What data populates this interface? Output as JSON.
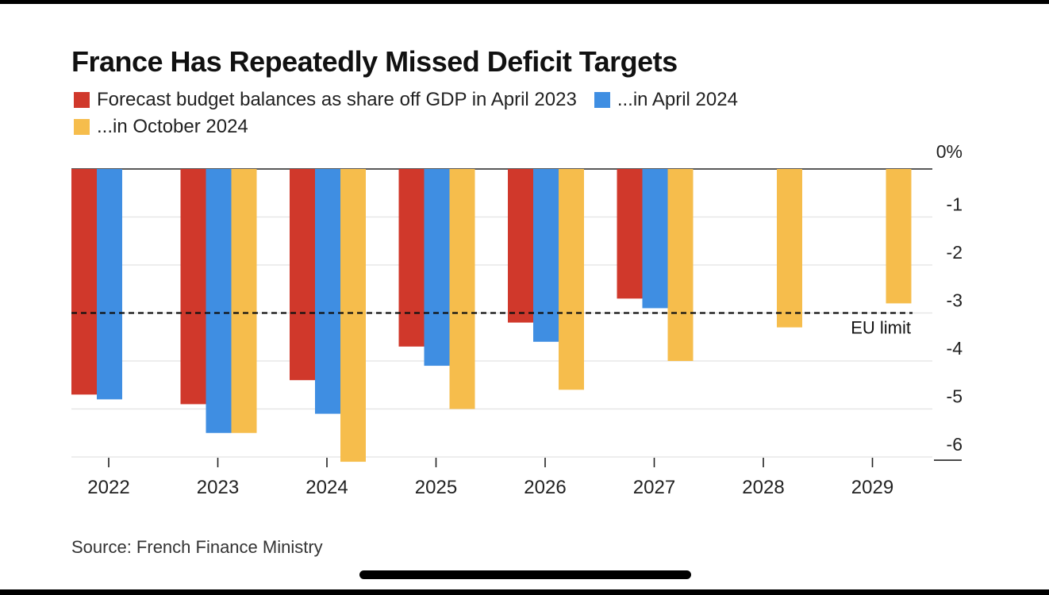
{
  "chart_data": {
    "type": "bar",
    "title": "France Has Repeatedly Missed Deficit Targets",
    "categories": [
      "2022",
      "2023",
      "2024",
      "2025",
      "2026",
      "2027",
      "2028",
      "2029"
    ],
    "series": [
      {
        "name": "Forecast budget balances as share off GDP in April 2023",
        "color": "#d0382b",
        "values": [
          -4.7,
          -4.9,
          -4.4,
          -3.7,
          -3.2,
          -2.7,
          null,
          null
        ]
      },
      {
        "name": "...in April 2024",
        "color": "#3f8ee2",
        "values": [
          -4.8,
          -5.5,
          -5.1,
          -4.1,
          -3.6,
          -2.9,
          null,
          null
        ]
      },
      {
        "name": "...in October 2024",
        "color": "#f6bd4c",
        "values": [
          null,
          -5.5,
          -6.1,
          -5.0,
          -4.6,
          -4.0,
          -3.3,
          -2.8
        ]
      }
    ],
    "yticks": [
      "0%",
      "-1",
      "-2",
      "-3",
      "-4",
      "-5",
      "-6"
    ],
    "ylim": [
      -6.1,
      0
    ],
    "grid": true,
    "reference_line": {
      "value": -3,
      "label": "EU limit"
    },
    "legend": "top-left",
    "yaxis_position": "right"
  },
  "source": "Source: French Finance Ministry"
}
